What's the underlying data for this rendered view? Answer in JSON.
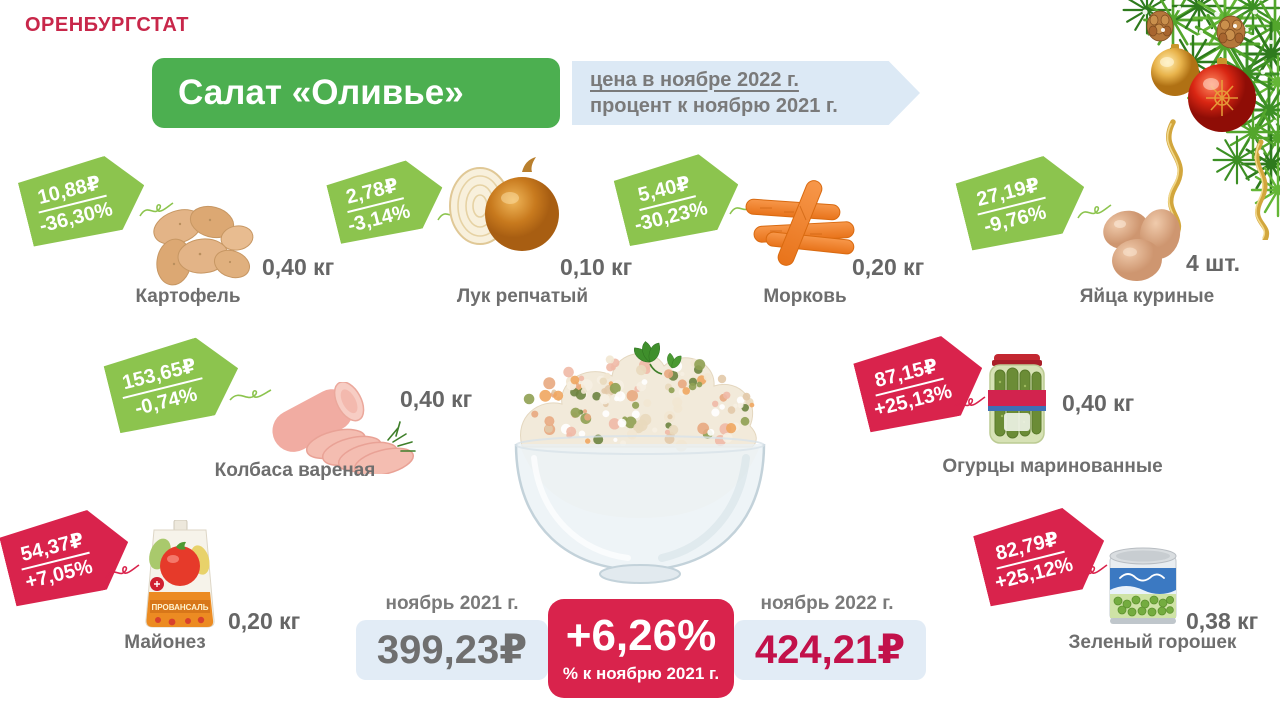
{
  "brand": "ОРЕНБУРГСТАТ",
  "header": {
    "title": "Салат «Оливье»",
    "subtitle_line1": "цена в ноябре 2022 г.",
    "subtitle_line2": "процент к ноябрю 2021 г."
  },
  "products": [
    {
      "name": "Картофель",
      "price": "10,88₽",
      "change": "-36,30%",
      "amount": "0,40 кг",
      "trend": "down"
    },
    {
      "name": "Лук репчатый",
      "price": "2,78₽",
      "change": "-3,14%",
      "amount": "0,10 кг",
      "trend": "down"
    },
    {
      "name": "Морковь",
      "price": "5,40₽",
      "change": "-30,23%",
      "amount": "0,20 кг",
      "trend": "down"
    },
    {
      "name": "Яйца куриные",
      "price": "27,19₽",
      "change": "-9,76%",
      "amount": "4 шт.",
      "trend": "down"
    },
    {
      "name": "Колбаса вареная",
      "price": "153,65₽",
      "change": "-0,74%",
      "amount": "0,40 кг",
      "trend": "down"
    },
    {
      "name": "Огурцы маринованные",
      "price": "87,15₽",
      "change": "+25,13%",
      "amount": "0,40 кг",
      "trend": "up"
    },
    {
      "name": "Майонез",
      "price": "54,37₽",
      "change": "+7,05%",
      "amount": "0,20 кг",
      "trend": "up",
      "package_text": "ПРОВАНСАЛЬ"
    },
    {
      "name": "Зеленый горошек",
      "price": "82,79₽",
      "change": "+25,12%",
      "amount": "0,38 кг",
      "trend": "up"
    }
  ],
  "summary": {
    "left_label": "ноябрь 2021 г.",
    "left_value": "399,23₽",
    "center_value": "+6,26%",
    "center_caption": "% к ноябрю 2021 г.",
    "right_label": "ноябрь 2022 г.",
    "right_value": "424,21₽"
  },
  "colors": {
    "brand_red": "#C8274A",
    "title_green": "#4CAF50",
    "tag_green": "#8CC44E",
    "tag_red": "#D9234C",
    "panel_blue": "#E2ECF6",
    "banner_blue": "#DCE9F5",
    "text_gray": "#6E6E6E"
  }
}
